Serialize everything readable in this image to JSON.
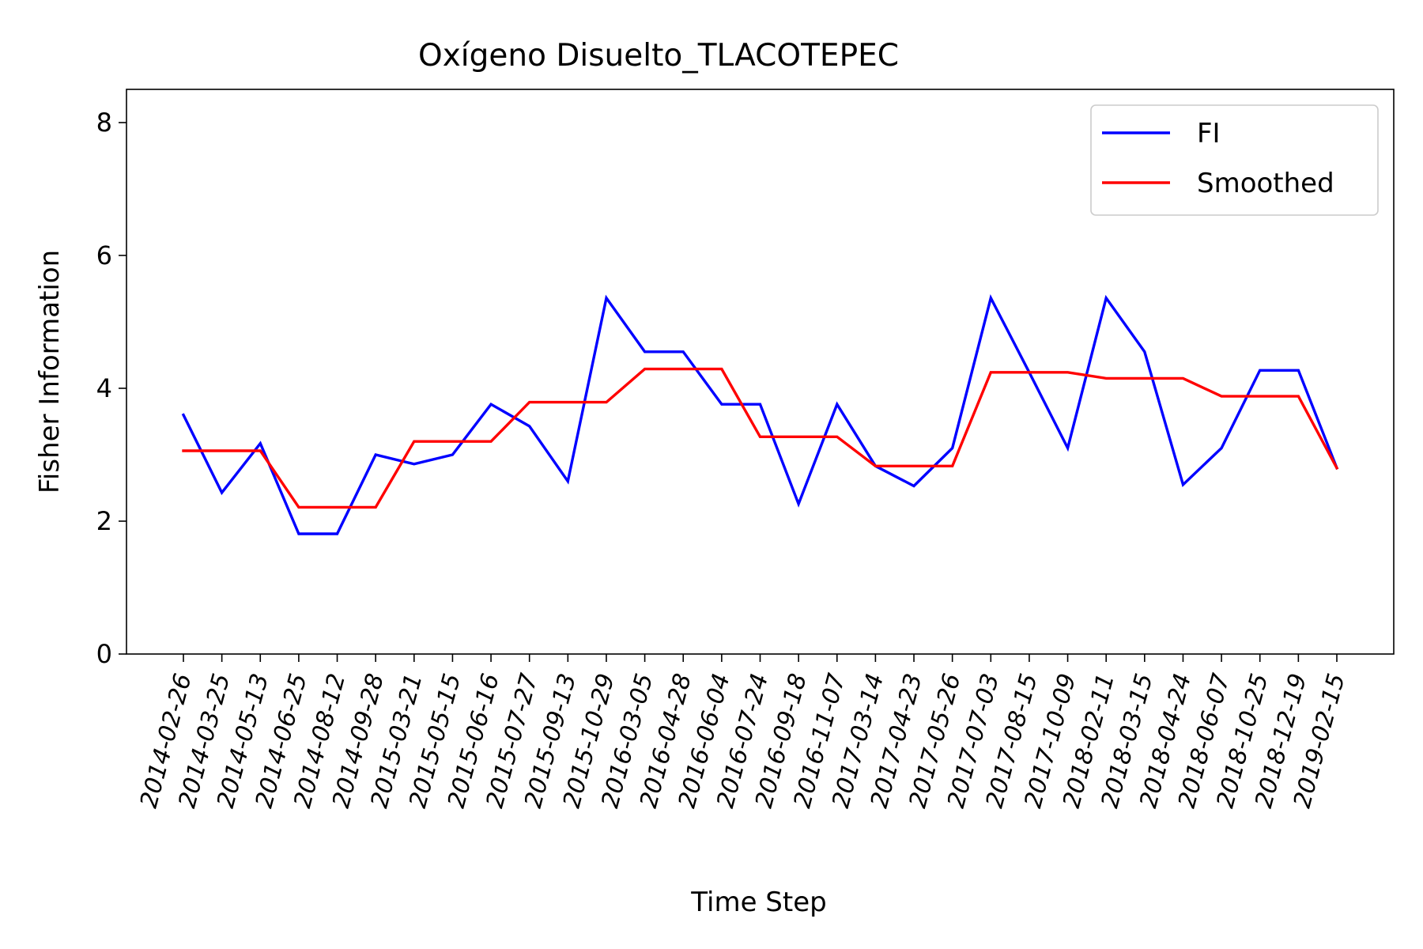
{
  "chart_data": {
    "type": "line",
    "title": "Oxígeno Disuelto_TLACOTEPEC",
    "xlabel": "Time Step",
    "ylabel": "Fisher Information",
    "ylim": [
      0,
      8.5
    ],
    "yticks": [
      0,
      2,
      4,
      6,
      8
    ],
    "grid": false,
    "legend_position": "top-right",
    "categories": [
      "2014-02-26",
      "2014-03-25",
      "2014-05-13",
      "2014-06-25",
      "2014-08-12",
      "2014-09-28",
      "2015-03-21",
      "2015-05-15",
      "2015-06-16",
      "2015-07-27",
      "2015-09-13",
      "2015-10-29",
      "2016-03-05",
      "2016-04-28",
      "2016-06-04",
      "2016-07-24",
      "2016-09-18",
      "2016-11-07",
      "2017-03-14",
      "2017-04-23",
      "2017-05-26",
      "2017-07-03",
      "2017-08-15",
      "2017-10-09",
      "2018-02-11",
      "2018-03-15",
      "2018-04-24",
      "2018-06-07",
      "2018-10-25",
      "2018-12-19",
      "2019-02-15"
    ],
    "series": [
      {
        "name": "FI",
        "color": "#0000ff",
        "values": [
          3.6,
          2.43,
          3.17,
          1.81,
          1.81,
          3.0,
          2.86,
          3.0,
          3.76,
          3.43,
          2.6,
          5.36,
          4.55,
          4.55,
          3.76,
          3.76,
          2.26,
          3.76,
          2.83,
          2.53,
          3.1,
          5.36,
          4.24,
          3.1,
          5.36,
          4.55,
          2.55,
          3.1,
          4.27,
          4.27,
          2.8
        ]
      },
      {
        "name": "Smoothed",
        "color": "#ff0000",
        "values": [
          3.06,
          3.06,
          3.06,
          2.21,
          2.21,
          2.21,
          3.2,
          3.2,
          3.2,
          3.79,
          3.79,
          3.79,
          4.29,
          4.29,
          4.29,
          3.27,
          3.27,
          3.27,
          2.83,
          2.83,
          2.83,
          4.24,
          4.24,
          4.24,
          4.15,
          4.15,
          4.15,
          3.88,
          3.88,
          3.88,
          2.8
        ]
      }
    ]
  }
}
